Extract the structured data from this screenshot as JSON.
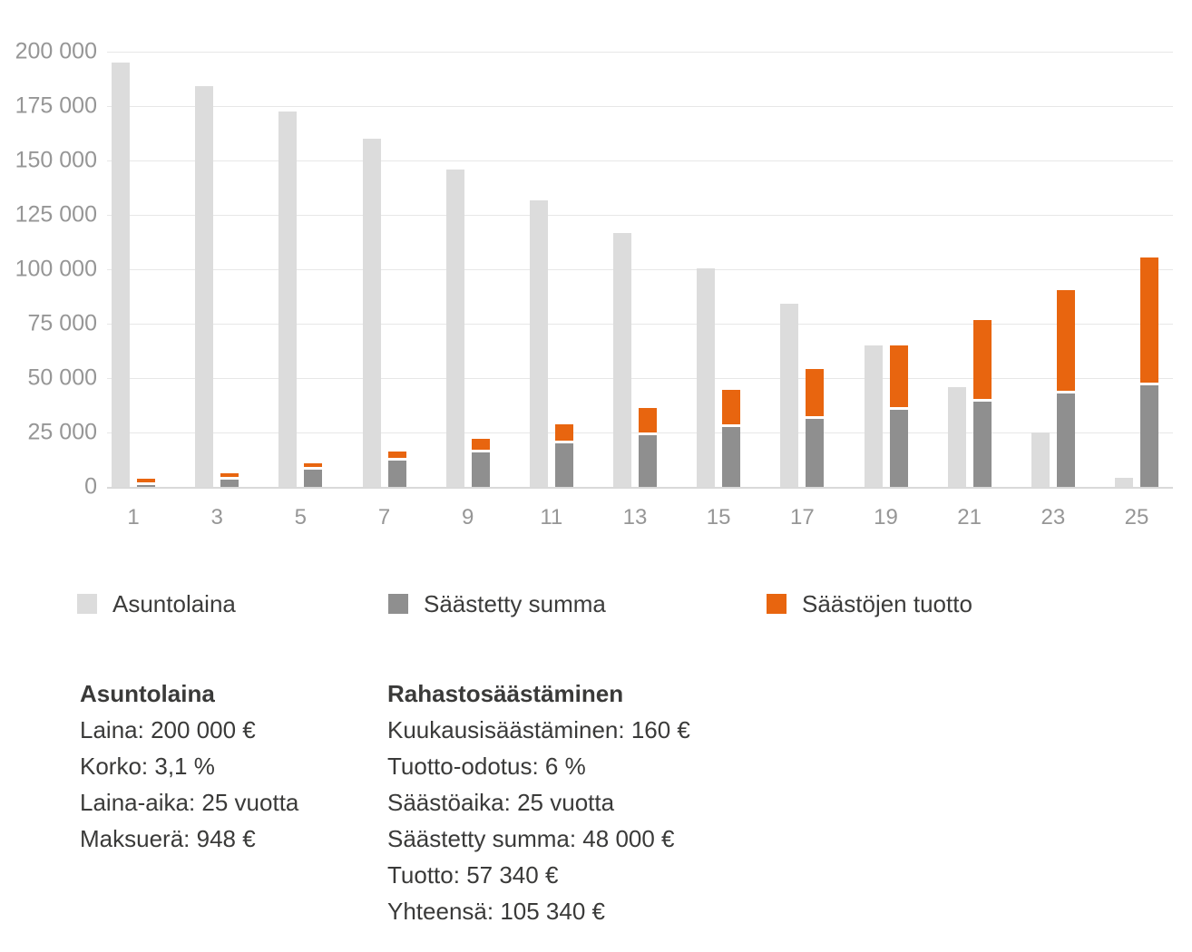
{
  "chart_data": {
    "type": "bar",
    "stacked": "series 2 and 3 stacked in second bar of each pair; series 1 is separate bar",
    "categories": [
      "1",
      "3",
      "5",
      "7",
      "9",
      "11",
      "13",
      "15",
      "17",
      "19",
      "21",
      "23",
      "25"
    ],
    "series": [
      {
        "name": "Asuntolaina",
        "color": "#dcdcdc",
        "values": [
          195000,
          184000,
          172500,
          160000,
          146000,
          131500,
          116500,
          100500,
          84000,
          65000,
          46000,
          25000,
          4000
        ]
      },
      {
        "name": "Säästetty summa",
        "color": "#8f8f8f",
        "values": [
          1920,
          5760,
          9600,
          13440,
          17280,
          21120,
          24960,
          28800,
          32640,
          36480,
          40320,
          44160,
          48000
        ]
      },
      {
        "name": "Säästöjen tuotto",
        "color": "#e8650f",
        "values": [
          60,
          350,
          1220,
          2680,
          4790,
          7630,
          11300,
          15910,
          21550,
          28370,
          36500,
          46120,
          57340
        ]
      }
    ],
    "title": "",
    "xlabel": "",
    "ylabel": "",
    "ylim": [
      0,
      200000
    ],
    "ytick_labels": [
      "200 000",
      "175 000",
      "150 000",
      "125 000",
      "100 000",
      "75 000",
      "50 000",
      "25 000",
      "0"
    ],
    "grid": true,
    "legend_position": "bottom"
  },
  "legend": {
    "items": [
      {
        "label": "Asuntolaina",
        "color": "#dcdcdc"
      },
      {
        "label": "Säästetty summa",
        "color": "#8f8f8f"
      },
      {
        "label": "Säästöjen tuotto",
        "color": "#e8650f"
      }
    ]
  },
  "info_left": {
    "title": "Asuntolaina",
    "lines": [
      "Laina: 200 000 €",
      "Korko: 3,1 %",
      "Laina-aika: 25 vuotta",
      "Maksuerä: 948 €"
    ]
  },
  "info_right": {
    "title": "Rahastosäästäminen",
    "lines": [
      "Kuukausisäästäminen: 160 €",
      "Tuotto-odotus: 6 %",
      "Säästöaika: 25 vuotta",
      "Säästetty summa: 48 000 €",
      "Tuotto: 57 340 €",
      "Yhteensä: 105 340 €"
    ]
  },
  "colors": {
    "loan_bar": "#dcdcdc",
    "saved_bar": "#8f8f8f",
    "return_bar": "#e8650f",
    "gridline": "#e7e7e7",
    "axis_line": "#d9d9d9",
    "tick_text": "#969696",
    "body_text": "#3a3a39"
  }
}
